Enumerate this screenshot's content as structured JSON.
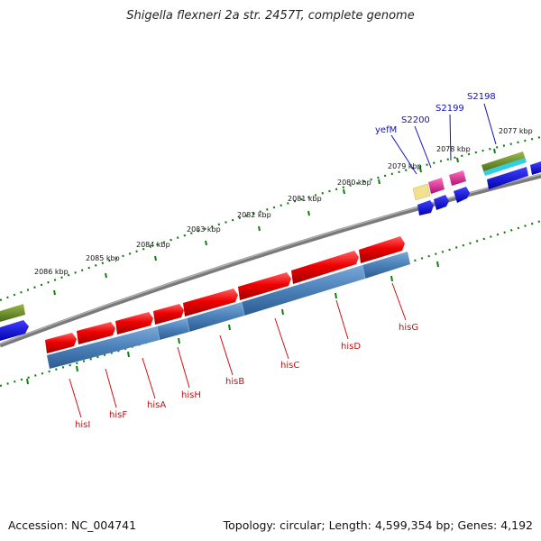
{
  "title": "Shigella flexneri 2a str. 2457T, complete genome",
  "footer": {
    "accession": "Accession: NC_004741",
    "summary": "Topology: circular; Length: 4,599,354 bp; Genes: 4,192"
  },
  "ruler_ticks": [
    {
      "label": "2077 kbp"
    },
    {
      "label": "2078 kbp"
    },
    {
      "label": "2079 kbp"
    },
    {
      "label": "2080 kbp"
    },
    {
      "label": "2081 kbp"
    },
    {
      "label": "2082 kbp"
    },
    {
      "label": "2083 kbp"
    },
    {
      "label": "2084 kbp"
    },
    {
      "label": "2085 kbp"
    },
    {
      "label": "2086 kbp"
    }
  ],
  "upper_gene_labels": [
    {
      "label": "S2198"
    },
    {
      "label": "S2199"
    },
    {
      "label": "S2200"
    },
    {
      "label": "yefM"
    }
  ],
  "lower_gene_labels": [
    {
      "label": "hisG"
    },
    {
      "label": "hisD"
    },
    {
      "label": "hisC"
    },
    {
      "label": "hisB"
    },
    {
      "label": "hisH"
    },
    {
      "label": "hisA"
    },
    {
      "label": "hisF"
    },
    {
      "label": "hisI"
    }
  ],
  "colors": {
    "backbone": "#808080",
    "cds_red": "#e00000",
    "operon_blue": "#4a80b8",
    "gene_blue": "#0000e8",
    "olive": "#6b8a2a",
    "cyan": "#30d0e0",
    "pink": "#e02890",
    "pale_yellow": "#f0e090",
    "tick_green": "#108010"
  }
}
